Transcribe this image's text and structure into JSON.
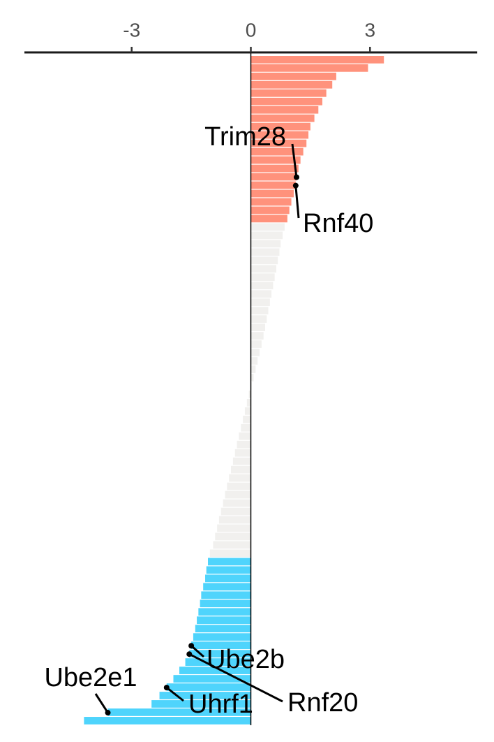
{
  "chart_data": {
    "type": "bar",
    "orientation": "horizontal",
    "xlim": [
      -5.7,
      5.7
    ],
    "xticks": [
      -3,
      0,
      3
    ],
    "series": [
      {
        "color": "#ff927c",
        "values": [
          3.35,
          2.95,
          2.15,
          2.05,
          1.9,
          1.8,
          1.7,
          1.6,
          1.5,
          1.45,
          1.4,
          1.32,
          1.25,
          1.2,
          1.15,
          1.13,
          1.08,
          1.02,
          0.97,
          0.92
        ],
        "categories": [
          null,
          null,
          null,
          null,
          null,
          null,
          null,
          null,
          null,
          null,
          null,
          null,
          null,
          null,
          "Trim28",
          "Rnf40",
          null,
          null,
          null,
          null
        ]
      },
      {
        "color": "#f1f0ee",
        "values": [
          0.85,
          0.8,
          0.75,
          0.72,
          0.68,
          0.64,
          0.6,
          0.56,
          0.52,
          0.48,
          0.44,
          0.4,
          0.36,
          0.32,
          0.27,
          0.22,
          0.17,
          0.12,
          0.07,
          0.02,
          -0.05,
          -0.1,
          -0.15,
          -0.2,
          -0.25,
          -0.3,
          -0.35,
          -0.4,
          -0.45,
          -0.5,
          -0.55,
          -0.6,
          -0.65,
          -0.7,
          -0.75,
          -0.8,
          -0.85,
          -0.9,
          -0.95,
          -1.03
        ],
        "categories": [
          null,
          null,
          null,
          null,
          null,
          null,
          null,
          null,
          null,
          null,
          null,
          null,
          null,
          null,
          null,
          null,
          null,
          null,
          null,
          null,
          null,
          null,
          null,
          null,
          null,
          null,
          null,
          null,
          null,
          null,
          null,
          null,
          null,
          null,
          null,
          null,
          null,
          null,
          null,
          null
        ]
      },
      {
        "color": "#4fd4fc",
        "values": [
          -1.08,
          -1.12,
          -1.15,
          -1.2,
          -1.25,
          -1.28,
          -1.32,
          -1.36,
          -1.4,
          -1.45,
          -1.5,
          -1.55,
          -1.65,
          -1.8,
          -1.95,
          -2.12,
          -2.3,
          -2.5,
          -3.6,
          -4.2
        ],
        "categories": [
          null,
          null,
          null,
          null,
          null,
          null,
          null,
          null,
          null,
          null,
          "Ube2b",
          "Rnf20",
          null,
          null,
          null,
          "Uhrf1",
          null,
          null,
          "Ube2e1",
          null
        ]
      }
    ]
  }
}
